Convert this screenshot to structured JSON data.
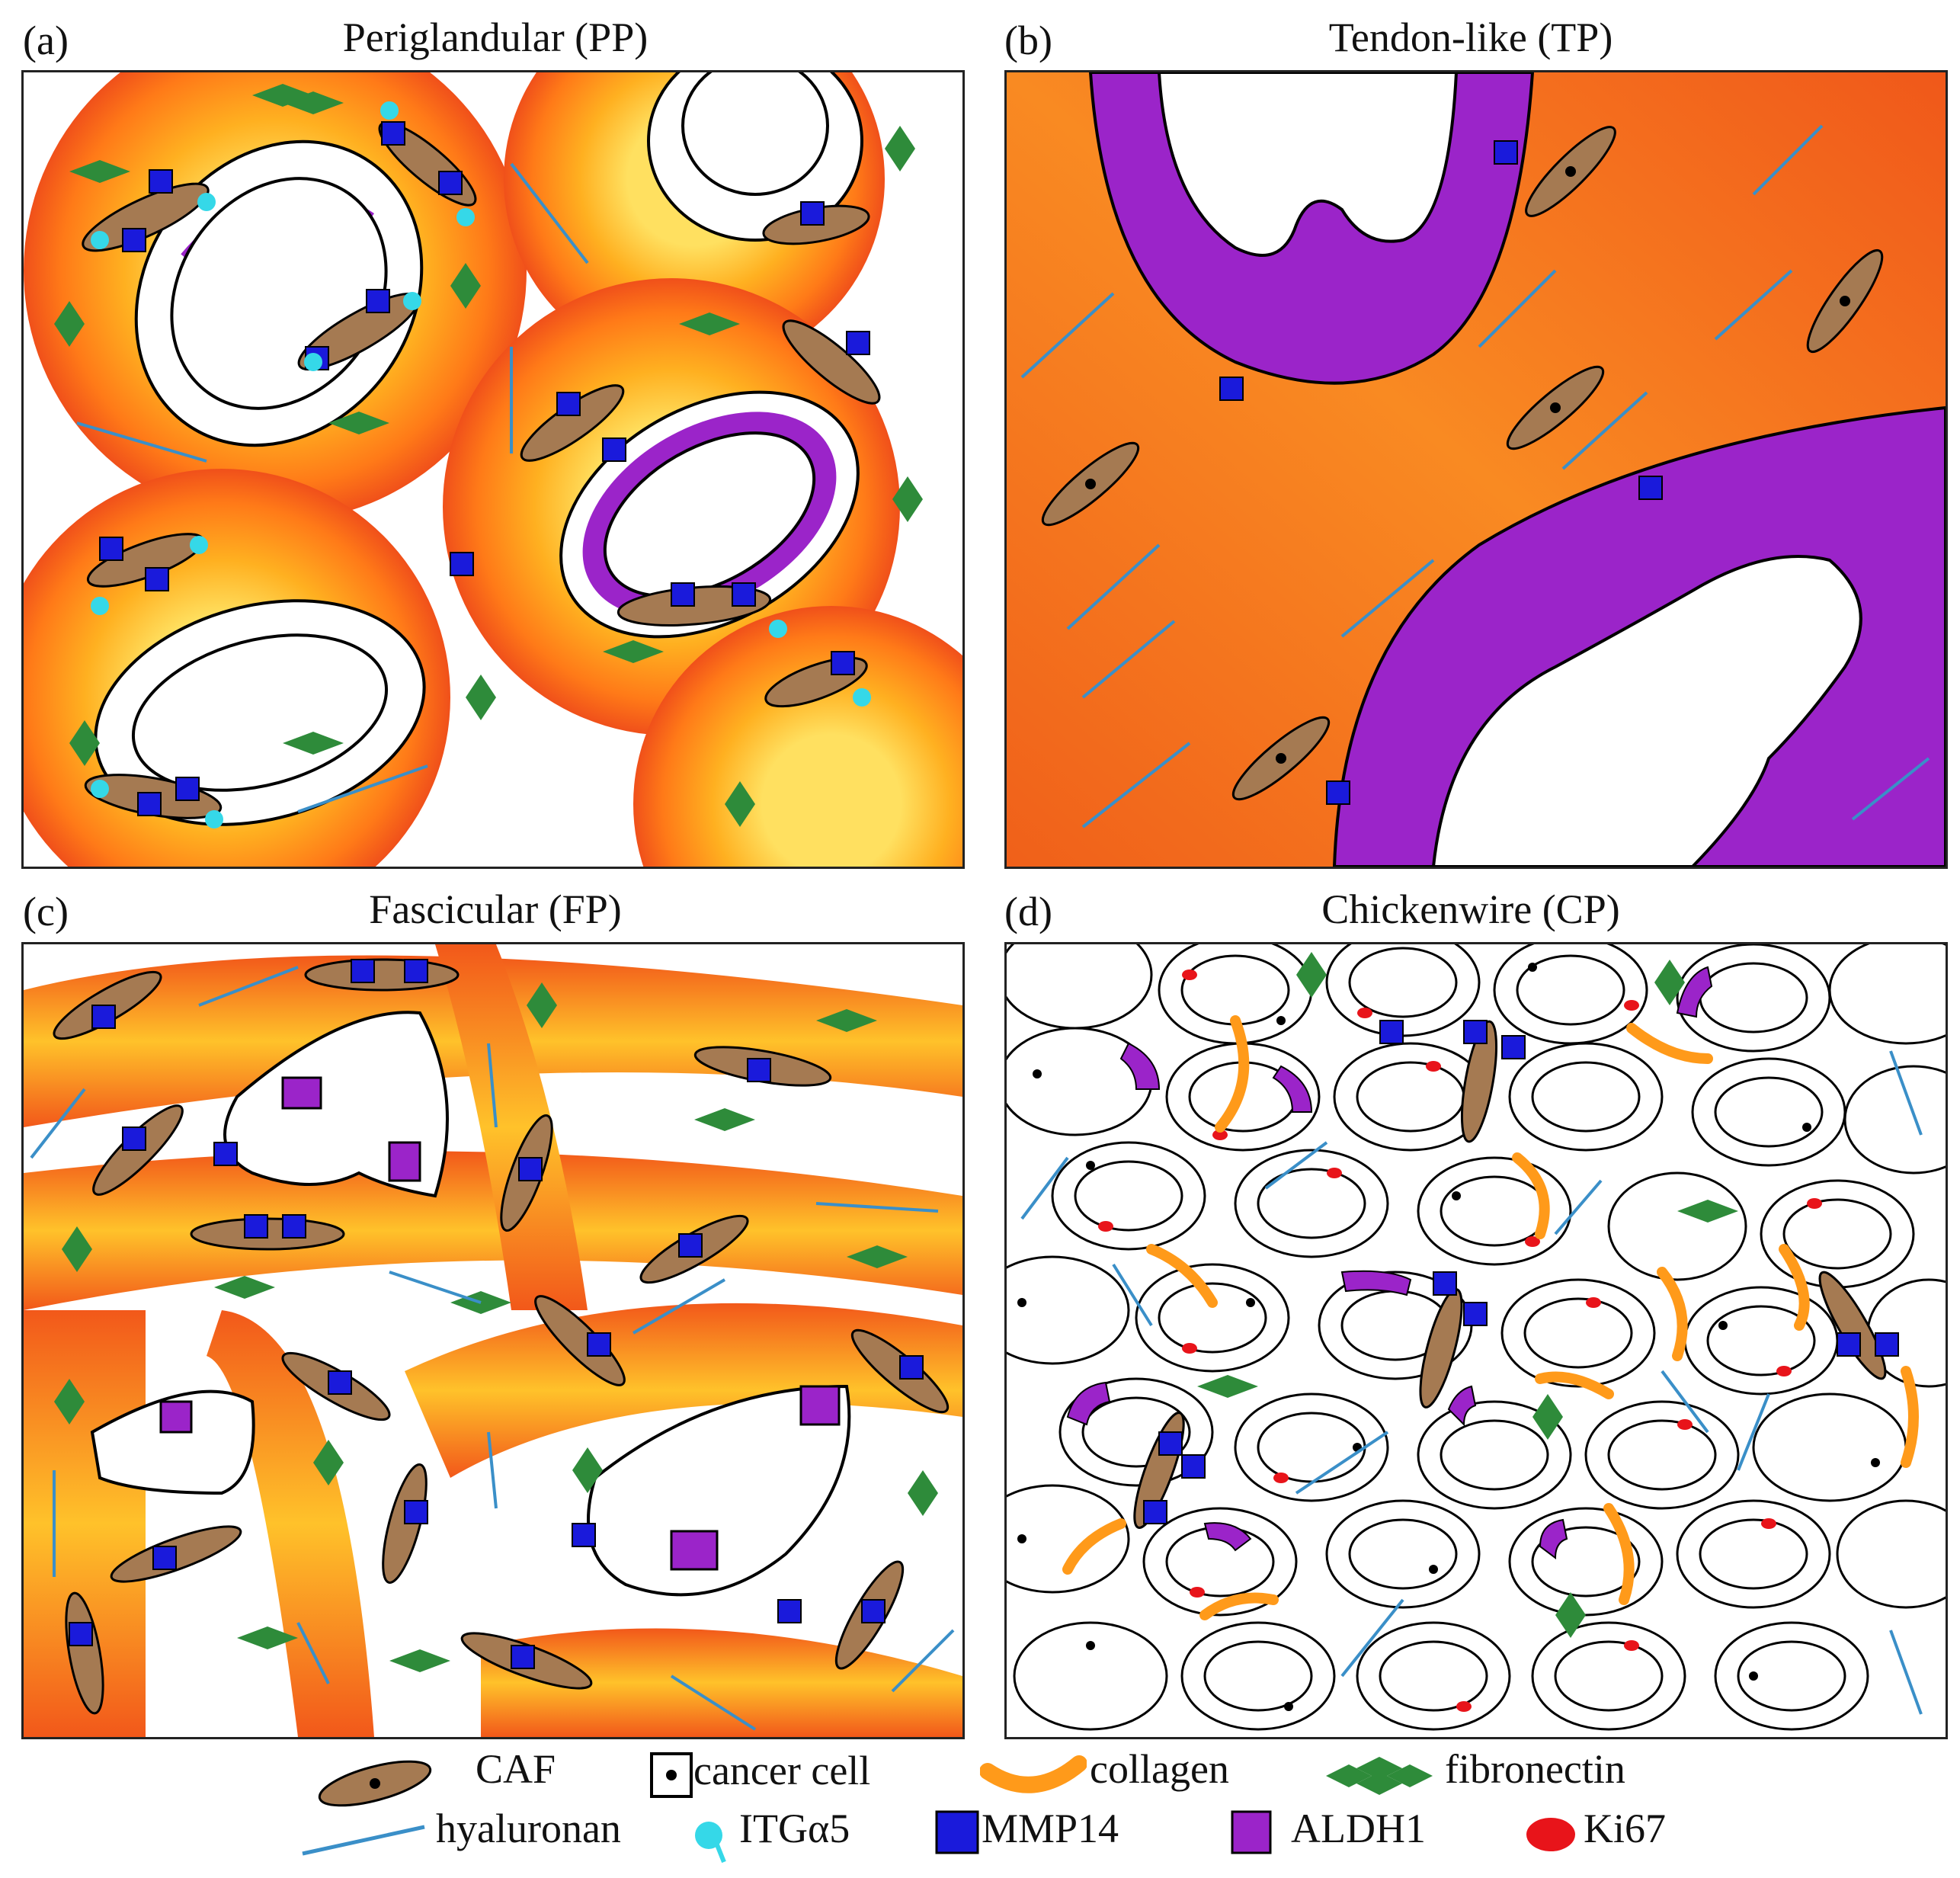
{
  "panels": [
    {
      "letter": "(a)",
      "title": "Periglandular (PP)"
    },
    {
      "letter": "(b)",
      "title": "Tendon-like (TP)"
    },
    {
      "letter": "(c)",
      "title": "Fascicular (FP)"
    },
    {
      "letter": "(d)",
      "title": "Chickenwire (CP)"
    }
  ],
  "legend": {
    "caf": "CAF",
    "cancer_cell": "cancer cell",
    "collagen": "collagen",
    "fibronectin": "fibronectin",
    "hyaluronan": "hyaluronan",
    "itga5": "ITGα5",
    "mmp14": "MMP14",
    "aldh1": "ALDH1",
    "ki67": "Ki67"
  },
  "colors": {
    "caf": "#a57a52",
    "collagen_light": "#ffd21a",
    "collagen_mid": "#ff9a1a",
    "collagen_dark": "#f2541a",
    "fibronectin": "#2e8b3a",
    "hyaluronan": "#3a8fc8",
    "itga5": "#35d8e8",
    "mmp14": "#1a1adb",
    "aldh1": "#9b24c9",
    "ki67": "#e8141a"
  }
}
